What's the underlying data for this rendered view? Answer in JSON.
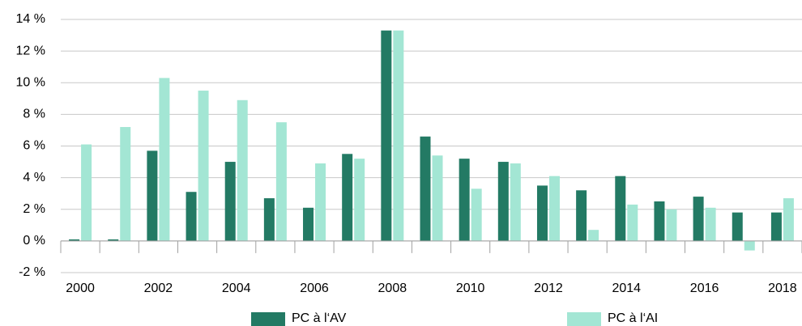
{
  "chart_data": {
    "type": "bar",
    "categories": [
      "2000",
      null,
      "2002",
      null,
      "2004",
      null,
      "2006",
      null,
      "2008",
      null,
      "2010",
      null,
      "2012",
      null,
      "2014",
      null,
      "2016",
      null,
      "2018"
    ],
    "series": [
      {
        "name": "PC à l‘AV",
        "color": "#237a64",
        "values": [
          0.1,
          0.1,
          5.7,
          3.1,
          5.0,
          2.7,
          2.1,
          5.5,
          13.3,
          6.6,
          5.2,
          5.0,
          3.5,
          3.2,
          4.1,
          2.5,
          2.8,
          1.8,
          1.8
        ]
      },
      {
        "name": "PC à l‘AI",
        "color": "#a3e6d4",
        "values": [
          6.1,
          7.2,
          10.3,
          9.5,
          8.9,
          7.5,
          4.9,
          5.2,
          13.3,
          5.4,
          3.3,
          4.9,
          4.1,
          0.7,
          2.3,
          2.0,
          2.1,
          -0.6,
          2.7
        ]
      }
    ],
    "ylim": [
      -2,
      14
    ],
    "yticks": [
      {
        "value": -2,
        "label": "-2 %"
      },
      {
        "value": 0,
        "label": "0 %"
      },
      {
        "value": 2,
        "label": "2 %"
      },
      {
        "value": 4,
        "label": "4 %"
      },
      {
        "value": 6,
        "label": "6 %"
      },
      {
        "value": 8,
        "label": "8 %"
      },
      {
        "value": 10,
        "label": "10 %"
      },
      {
        "value": 12,
        "label": "12 %"
      },
      {
        "value": 14,
        "label": "14 %"
      }
    ],
    "grid": true
  }
}
